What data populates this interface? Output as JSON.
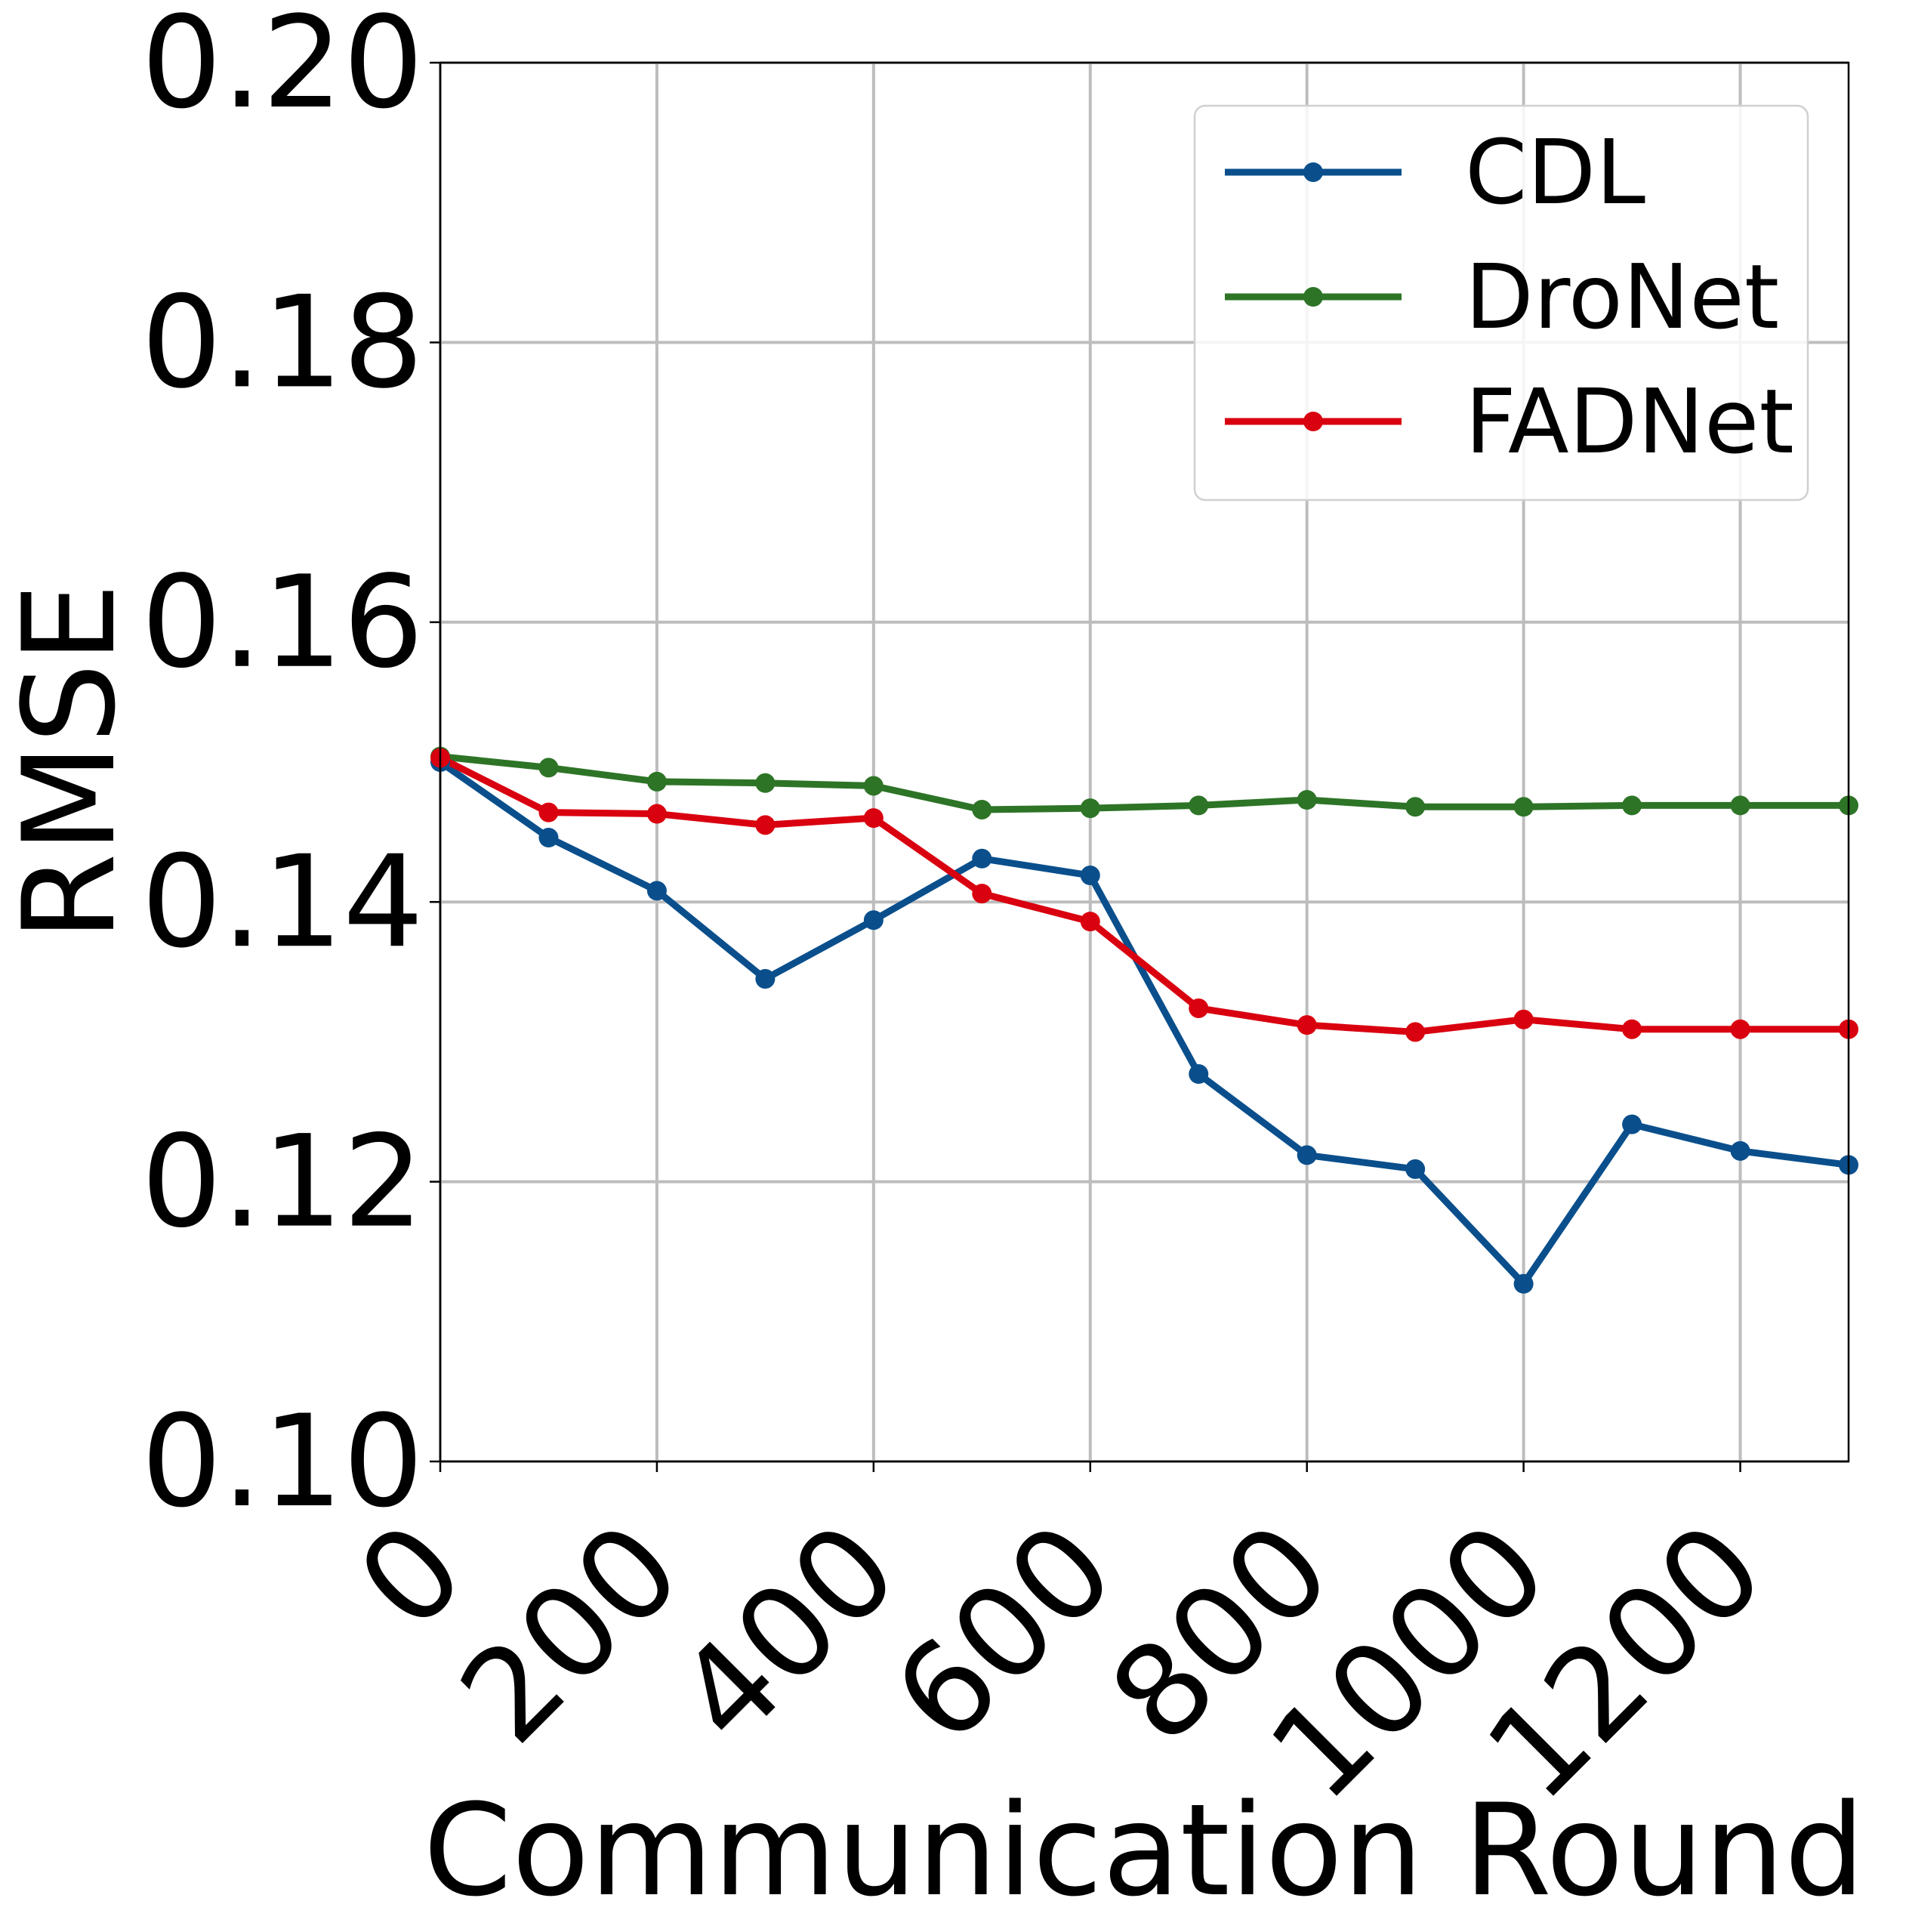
{
  "chart_data": {
    "type": "line",
    "xlabel": "Communication Round",
    "ylabel": "RMSE",
    "xlim": [
      0,
      1300
    ],
    "ylim": [
      0.1,
      0.2
    ],
    "xticks": [
      0,
      200,
      400,
      600,
      800,
      1000,
      1200
    ],
    "xtick_labels": [
      "0",
      "200",
      "400",
      "600",
      "800",
      "1000",
      "1200"
    ],
    "yticks": [
      0.1,
      0.12,
      0.14,
      0.16,
      0.18,
      0.2
    ],
    "ytick_labels": [
      "0.10",
      "0.12",
      "0.14",
      "0.16",
      "0.18",
      "0.20"
    ],
    "grid": true,
    "legend_position": "top-right",
    "x": [
      0,
      100,
      200,
      300,
      400,
      500,
      600,
      700,
      800,
      900,
      1000,
      1100,
      1200,
      1300
    ],
    "series": [
      {
        "name": "CDL",
        "color": "#0a4f8c",
        "values": [
          0.15,
          0.1446,
          0.1408,
          0.1345,
          0.1387,
          0.1431,
          0.1419,
          0.1277,
          0.1219,
          0.1209,
          0.1127,
          0.1241,
          0.1222,
          0.1212
        ]
      },
      {
        "name": "DroNet",
        "color": "#2e7427",
        "values": [
          0.1504,
          0.1496,
          0.1486,
          0.1485,
          0.1483,
          0.1466,
          0.1467,
          0.1469,
          0.1473,
          0.1468,
          0.1468,
          0.1469,
          0.1469,
          0.1469
        ]
      },
      {
        "name": "FADNet",
        "color": "#d9000f",
        "values": [
          0.1503,
          0.1464,
          0.1463,
          0.1455,
          0.146,
          0.1406,
          0.1386,
          0.1324,
          0.1312,
          0.1307,
          0.1316,
          0.1309,
          0.1309,
          0.1309
        ]
      }
    ]
  }
}
